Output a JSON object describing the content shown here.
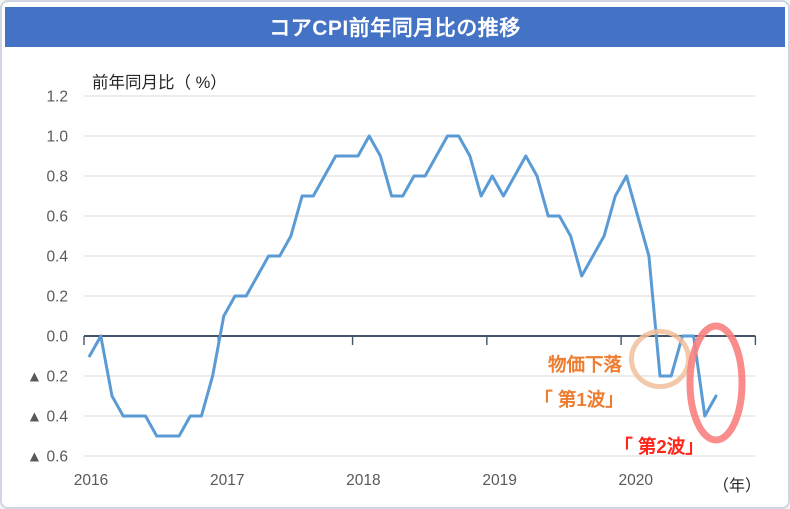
{
  "title": "コアCPI前年同月比の推移",
  "title_bar_color": "#4472C4",
  "chart_data": {
    "type": "line",
    "title": "コアCPI前年同月比の推移",
    "ylabel": "前年同月比（ %）",
    "xlabel": "（年）",
    "ylim": [
      -0.6,
      1.2
    ],
    "grid": true,
    "legend": "none",
    "line_color": "#5B9BD5",
    "y_tick_values": [
      1.2,
      1.0,
      0.8,
      0.6,
      0.4,
      0.2,
      0.0,
      -0.2,
      -0.4,
      -0.6
    ],
    "y_tick_labels": [
      "1.2",
      "1.0",
      "0.8",
      "0.6",
      "0.4",
      "0.2",
      "0.0",
      "▲ 0.2",
      "▲ 0.4",
      "▲ 0.6"
    ],
    "x_tick_labels": [
      "2016",
      "2017",
      "2018",
      "2019",
      "2020"
    ],
    "x": [
      "2016-01",
      "2016-02",
      "2016-03",
      "2016-04",
      "2016-05",
      "2016-06",
      "2016-07",
      "2016-08",
      "2016-09",
      "2016-10",
      "2016-11",
      "2016-12",
      "2017-01",
      "2017-02",
      "2017-03",
      "2017-04",
      "2017-05",
      "2017-06",
      "2017-07",
      "2017-08",
      "2017-09",
      "2017-10",
      "2017-11",
      "2017-12",
      "2018-01",
      "2018-02",
      "2018-03",
      "2018-04",
      "2018-05",
      "2018-06",
      "2018-07",
      "2018-08",
      "2018-09",
      "2018-10",
      "2018-11",
      "2018-12",
      "2019-01",
      "2019-02",
      "2019-03",
      "2019-04",
      "2019-05",
      "2019-06",
      "2019-07",
      "2019-08",
      "2019-09",
      "2019-10",
      "2019-11",
      "2019-12",
      "2020-01",
      "2020-02",
      "2020-03",
      "2020-04",
      "2020-05",
      "2020-06",
      "2020-07",
      "2020-08",
      "2020-09"
    ],
    "values": [
      -0.1,
      0.0,
      -0.3,
      -0.4,
      -0.4,
      -0.4,
      -0.5,
      -0.5,
      -0.5,
      -0.4,
      -0.4,
      -0.2,
      0.1,
      0.2,
      0.2,
      0.3,
      0.4,
      0.4,
      0.5,
      0.7,
      0.7,
      0.8,
      0.9,
      0.9,
      0.9,
      1.0,
      0.9,
      0.7,
      0.7,
      0.8,
      0.8,
      0.9,
      1.0,
      1.0,
      0.9,
      0.7,
      0.8,
      0.7,
      0.8,
      0.9,
      0.8,
      0.6,
      0.6,
      0.5,
      0.3,
      0.4,
      0.5,
      0.7,
      0.8,
      0.6,
      0.4,
      -0.2,
      -0.2,
      0.0,
      0.0,
      -0.4,
      -0.3
    ]
  },
  "annotations": {
    "price_decline_label": "物価下落",
    "wave1_label": "「 第1波」",
    "wave2_label": "「 第2波」",
    "orange": "#ED7D31",
    "red": "#FF2619",
    "wave1_circle_color": "#F2BE9B",
    "wave2_circle_color": "#F98080"
  }
}
